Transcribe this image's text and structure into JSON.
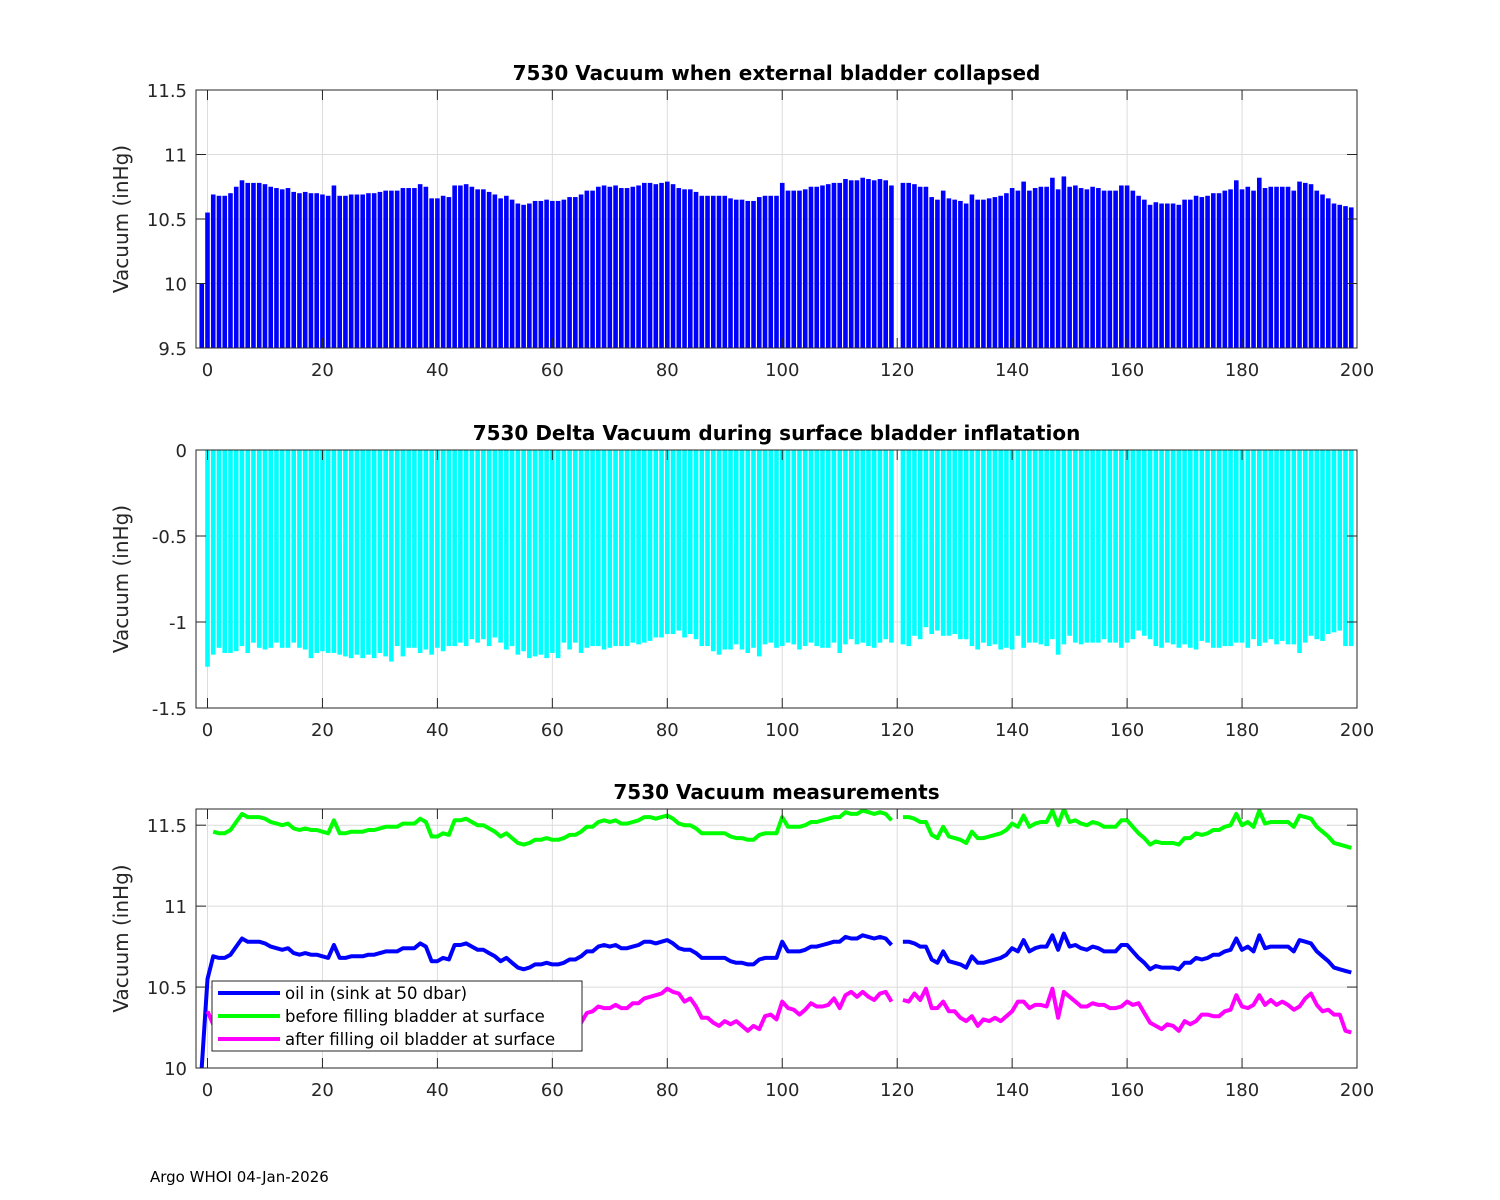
{
  "footer": "Argo WHOI 04-Jan-2026",
  "colors": {
    "oil_in": "#0000ff",
    "delta": "#00ffff",
    "before": "#00ff00",
    "after": "#ff00ff",
    "grid": "#dcdcdc",
    "axis": "#262626"
  },
  "chart_data": [
    {
      "type": "bar",
      "title": "7530 Vacuum when external bladder collapsed",
      "xlabel": "",
      "ylabel": "Vacuum (inHg)",
      "xlim": [
        -2,
        200
      ],
      "ylim": [
        9.5,
        11.5
      ],
      "grid": true,
      "xticks": [
        0,
        20,
        40,
        60,
        80,
        100,
        120,
        140,
        160,
        180,
        200
      ],
      "xtick_labels": [
        "0",
        "20",
        "40",
        "60",
        "80",
        "100",
        "120",
        "140",
        "160",
        "180",
        "200"
      ],
      "yticks": [
        9.5,
        10,
        10.5,
        11,
        11.5
      ],
      "ytick_labels": [
        "9.5",
        "10",
        "10.5",
        "11",
        "11.5"
      ],
      "x_start": -1,
      "series_key": "oil_in"
    },
    {
      "type": "bar",
      "title": "7530 Delta Vacuum during surface bladder inflatation",
      "xlabel": "",
      "ylabel": "Vacuum (inHg)",
      "xlim": [
        -2,
        200
      ],
      "ylim": [
        -1.5,
        0
      ],
      "grid": true,
      "xticks": [
        0,
        20,
        40,
        60,
        80,
        100,
        120,
        140,
        160,
        180,
        200
      ],
      "xtick_labels": [
        "0",
        "20",
        "40",
        "60",
        "80",
        "100",
        "120",
        "140",
        "160",
        "180",
        "200"
      ],
      "yticks": [
        -1.5,
        -1,
        -0.5,
        0
      ],
      "ytick_labels": [
        "-1.5",
        "-1",
        "-0.5",
        "0"
      ],
      "x_start": -1,
      "series_key": "delta"
    },
    {
      "type": "line",
      "title": "7530 Vacuum measurements",
      "xlabel": "",
      "ylabel": "Vacuum (inHg)",
      "xlim": [
        -2,
        200
      ],
      "ylim": [
        10,
        11.6
      ],
      "grid": true,
      "legend_position": "bottom-left",
      "xticks": [
        0,
        20,
        40,
        60,
        80,
        100,
        120,
        140,
        160,
        180,
        200
      ],
      "xtick_labels": [
        "0",
        "20",
        "40",
        "60",
        "80",
        "100",
        "120",
        "140",
        "160",
        "180",
        "200"
      ],
      "yticks": [
        10,
        10.5,
        11,
        11.5
      ],
      "ytick_labels": [
        "10",
        "10.5",
        "11",
        "11.5"
      ],
      "x_start": -1,
      "legend": [
        {
          "name": "oil in (sink at 50 dbar)",
          "series_key": "oil_in"
        },
        {
          "name": "before filling bladder at surface",
          "series_key": "before"
        },
        {
          "name": "after filling oil bladder at surface",
          "series_key": "after"
        }
      ]
    }
  ],
  "series": {
    "oil_in": [
      10.0,
      10.55,
      10.69,
      10.68,
      10.68,
      10.7,
      10.75,
      10.8,
      10.78,
      10.78,
      10.78,
      10.77,
      10.75,
      10.74,
      10.73,
      10.74,
      10.71,
      10.7,
      10.71,
      10.7,
      10.7,
      10.69,
      10.68,
      10.76,
      10.68,
      10.68,
      10.69,
      10.69,
      10.69,
      10.7,
      10.7,
      10.71,
      10.72,
      10.72,
      10.72,
      10.74,
      10.74,
      10.74,
      10.77,
      10.75,
      10.66,
      10.66,
      10.68,
      10.67,
      10.76,
      10.76,
      10.77,
      10.75,
      10.73,
      10.73,
      10.71,
      10.69,
      10.66,
      10.68,
      10.65,
      10.62,
      10.61,
      10.62,
      10.64,
      10.64,
      10.65,
      10.64,
      10.64,
      10.65,
      10.67,
      10.67,
      10.69,
      10.72,
      10.72,
      10.75,
      10.76,
      10.75,
      10.76,
      10.74,
      10.74,
      10.75,
      10.76,
      10.78,
      10.78,
      10.77,
      10.78,
      10.79,
      10.77,
      10.74,
      10.73,
      10.73,
      10.71,
      10.68,
      10.68,
      10.68,
      10.68,
      10.68,
      10.66,
      10.65,
      10.65,
      10.64,
      10.64,
      10.67,
      10.68,
      10.68,
      10.68,
      10.78,
      10.72,
      10.72,
      10.72,
      10.73,
      10.75,
      10.75,
      10.76,
      10.77,
      10.78,
      10.78,
      10.81,
      10.8,
      10.8,
      10.82,
      10.81,
      10.8,
      10.81,
      10.8,
      10.76,
      null,
      10.78,
      10.78,
      10.77,
      10.75,
      10.75,
      10.67,
      10.65,
      10.72,
      10.66,
      10.65,
      10.64,
      10.62,
      10.69,
      10.65,
      10.65,
      10.66,
      10.67,
      10.68,
      10.7,
      10.74,
      10.72,
      10.79,
      10.72,
      10.74,
      10.75,
      10.75,
      10.82,
      10.73,
      10.83,
      10.75,
      10.76,
      10.74,
      10.73,
      10.75,
      10.74,
      10.72,
      10.72,
      10.72,
      10.76,
      10.76,
      10.72,
      10.68,
      10.65,
      10.61,
      10.63,
      10.62,
      10.62,
      10.62,
      10.61,
      10.65,
      10.65,
      10.68,
      10.67,
      10.68,
      10.7,
      10.7,
      10.72,
      10.73,
      10.8,
      10.73,
      10.75,
      10.72,
      10.82,
      10.74,
      10.75,
      10.75,
      10.75,
      10.75,
      10.72,
      10.79,
      10.78,
      10.77,
      10.72,
      10.69,
      10.66,
      10.62,
      10.61,
      10.6,
      10.59
    ],
    "delta": [
      null,
      -1.26,
      -1.19,
      -1.15,
      -1.18,
      -1.18,
      -1.17,
      -1.14,
      -1.18,
      -1.12,
      -1.15,
      -1.16,
      -1.15,
      -1.12,
      -1.15,
      -1.15,
      -1.12,
      -1.15,
      -1.16,
      -1.21,
      -1.18,
      -1.17,
      -1.18,
      -1.18,
      -1.19,
      -1.2,
      -1.21,
      -1.19,
      -1.21,
      -1.19,
      -1.21,
      -1.18,
      -1.2,
      -1.23,
      -1.14,
      -1.2,
      -1.15,
      -1.15,
      -1.18,
      -1.16,
      -1.19,
      -1.15,
      -1.17,
      -1.14,
      -1.14,
      -1.12,
      -1.14,
      -1.1,
      -1.12,
      -1.1,
      -1.14,
      -1.09,
      -1.12,
      -1.16,
      -1.14,
      -1.19,
      -1.17,
      -1.21,
      -1.2,
      -1.19,
      -1.21,
      -1.18,
      -1.21,
      -1.12,
      -1.16,
      -1.12,
      -1.18,
      -1.15,
      -1.14,
      -1.14,
      -1.16,
      -1.15,
      -1.14,
      -1.14,
      -1.14,
      -1.12,
      -1.13,
      -1.12,
      -1.11,
      -1.09,
      -1.09,
      -1.07,
      -1.07,
      -1.05,
      -1.09,
      -1.07,
      -1.1,
      -1.14,
      -1.14,
      -1.17,
      -1.19,
      -1.16,
      -1.16,
      -1.13,
      -1.16,
      -1.18,
      -1.15,
      -1.2,
      -1.13,
      -1.12,
      -1.15,
      -1.14,
      -1.12,
      -1.13,
      -1.16,
      -1.14,
      -1.12,
      -1.14,
      -1.15,
      -1.15,
      -1.12,
      -1.18,
      -1.13,
      -1.1,
      -1.13,
      -1.12,
      -1.14,
      -1.15,
      -1.12,
      -1.1,
      -1.12,
      null,
      -1.13,
      -1.14,
      -1.08,
      -1.1,
      -1.03,
      -1.07,
      -1.05,
      -1.08,
      -1.08,
      -1.07,
      -1.1,
      -1.1,
      -1.14,
      -1.16,
      -1.12,
      -1.14,
      -1.13,
      -1.16,
      -1.15,
      -1.16,
      -1.08,
      -1.15,
      -1.12,
      -1.12,
      -1.13,
      -1.14,
      -1.1,
      -1.19,
      -1.13,
      -1.08,
      -1.12,
      -1.13,
      -1.12,
      -1.12,
      -1.12,
      -1.1,
      -1.12,
      -1.12,
      -1.15,
      -1.12,
      -1.1,
      -1.05,
      -1.08,
      -1.1,
      -1.14,
      -1.15,
      -1.12,
      -1.13,
      -1.15,
      -1.13,
      -1.15,
      -1.16,
      -1.11,
      -1.12,
      -1.15,
      -1.15,
      -1.14,
      -1.14,
      -1.12,
      -1.12,
      -1.15,
      -1.1,
      -1.14,
      -1.12,
      -1.1,
      -1.13,
      -1.11,
      -1.13,
      -1.13,
      -1.18,
      -1.12,
      -1.08,
      -1.1,
      -1.11,
      -1.07,
      -1.06,
      -1.05,
      -1.14,
      -1.14
    ],
    "before": [
      null,
      null,
      11.46,
      11.45,
      11.45,
      11.47,
      11.52,
      11.57,
      11.55,
      11.55,
      11.55,
      11.54,
      11.52,
      11.51,
      11.5,
      11.51,
      11.48,
      11.47,
      11.48,
      11.47,
      11.47,
      11.46,
      11.45,
      11.53,
      11.45,
      11.45,
      11.46,
      11.46,
      11.46,
      11.47,
      11.47,
      11.48,
      11.49,
      11.49,
      11.49,
      11.51,
      11.51,
      11.51,
      11.54,
      11.52,
      11.43,
      11.43,
      11.45,
      11.44,
      11.53,
      11.53,
      11.54,
      11.52,
      11.5,
      11.5,
      11.48,
      11.46,
      11.43,
      11.45,
      11.42,
      11.39,
      11.38,
      11.39,
      11.41,
      11.41,
      11.42,
      11.41,
      11.41,
      11.42,
      11.44,
      11.44,
      11.46,
      11.49,
      11.49,
      11.52,
      11.53,
      11.52,
      11.53,
      11.51,
      11.51,
      11.52,
      11.53,
      11.55,
      11.55,
      11.54,
      11.55,
      11.56,
      11.54,
      11.51,
      11.5,
      11.5,
      11.48,
      11.45,
      11.45,
      11.45,
      11.45,
      11.45,
      11.43,
      11.42,
      11.42,
      11.41,
      11.41,
      11.44,
      11.45,
      11.45,
      11.45,
      11.55,
      11.49,
      11.49,
      11.49,
      11.5,
      11.52,
      11.52,
      11.53,
      11.54,
      11.55,
      11.55,
      11.58,
      11.57,
      11.57,
      11.59,
      11.58,
      11.57,
      11.58,
      11.57,
      11.53,
      null,
      11.55,
      11.55,
      11.54,
      11.52,
      11.52,
      11.44,
      11.42,
      11.49,
      11.43,
      11.42,
      11.41,
      11.39,
      11.46,
      11.42,
      11.42,
      11.43,
      11.44,
      11.45,
      11.47,
      11.51,
      11.49,
      11.56,
      11.49,
      11.51,
      11.52,
      11.52,
      11.59,
      11.5,
      11.6,
      11.52,
      11.53,
      11.51,
      11.5,
      11.52,
      11.51,
      11.49,
      11.49,
      11.49,
      11.53,
      11.53,
      11.49,
      11.45,
      11.42,
      11.38,
      11.4,
      11.39,
      11.39,
      11.39,
      11.38,
      11.42,
      11.42,
      11.45,
      11.44,
      11.45,
      11.47,
      11.47,
      11.49,
      11.5,
      11.57,
      11.5,
      11.52,
      11.49,
      11.59,
      11.51,
      11.52,
      11.52,
      11.52,
      11.52,
      11.49,
      11.56,
      11.55,
      11.54,
      11.49,
      11.46,
      11.43,
      11.39,
      11.38,
      11.37,
      11.36
    ],
    "after": [
      null,
      10.35,
      10.27,
      10.3,
      10.27,
      10.29,
      10.35,
      10.43,
      10.37,
      10.43,
      10.4,
      10.38,
      10.37,
      10.39,
      10.35,
      10.36,
      10.36,
      10.32,
      10.32,
      10.26,
      10.29,
      10.29,
      10.27,
      10.35,
      10.26,
      10.25,
      10.25,
      10.27,
      10.25,
      10.28,
      10.26,
      10.3,
      10.29,
      10.26,
      10.35,
      10.31,
      10.36,
      10.36,
      10.36,
      10.36,
      10.24,
      10.28,
      10.28,
      10.3,
      10.39,
      10.41,
      10.4,
      10.42,
      10.38,
      10.4,
      10.34,
      10.37,
      10.31,
      10.29,
      10.28,
      10.2,
      10.21,
      10.18,
      10.21,
      10.22,
      10.21,
      10.23,
      10.2,
      10.3,
      10.28,
      10.32,
      10.28,
      10.34,
      10.35,
      10.38,
      10.37,
      10.37,
      10.39,
      10.37,
      10.37,
      10.4,
      10.4,
      10.43,
      10.44,
      10.45,
      10.46,
      10.49,
      10.47,
      10.46,
      10.41,
      10.43,
      10.38,
      10.31,
      10.31,
      10.28,
      10.26,
      10.29,
      10.27,
      10.29,
      10.26,
      10.23,
      10.26,
      10.24,
      10.32,
      10.33,
      10.3,
      10.41,
      10.37,
      10.36,
      10.33,
      10.36,
      10.4,
      10.38,
      10.38,
      10.39,
      10.43,
      10.37,
      10.45,
      10.47,
      10.44,
      10.47,
      10.44,
      10.42,
      10.46,
      10.47,
      10.41,
      null,
      10.42,
      10.41,
      10.46,
      10.42,
      10.49,
      10.37,
      10.37,
      10.41,
      10.35,
      10.35,
      10.31,
      10.29,
      10.32,
      10.26,
      10.3,
      10.29,
      10.31,
      10.29,
      10.32,
      10.35,
      10.41,
      10.41,
      10.37,
      10.39,
      10.39,
      10.38,
      10.49,
      10.31,
      10.47,
      10.44,
      10.41,
      10.38,
      10.38,
      10.4,
      10.39,
      10.39,
      10.37,
      10.37,
      10.38,
      10.41,
      10.39,
      10.4,
      10.34,
      10.28,
      10.26,
      10.24,
      10.27,
      10.26,
      10.23,
      10.29,
      10.27,
      10.29,
      10.33,
      10.33,
      10.32,
      10.32,
      10.35,
      10.36,
      10.45,
      10.38,
      10.37,
      10.39,
      10.45,
      10.39,
      10.42,
      10.39,
      10.41,
      10.39,
      10.36,
      10.38,
      10.43,
      10.46,
      10.39,
      10.35,
      10.36,
      10.33,
      10.33,
      10.23,
      10.22
    ]
  }
}
